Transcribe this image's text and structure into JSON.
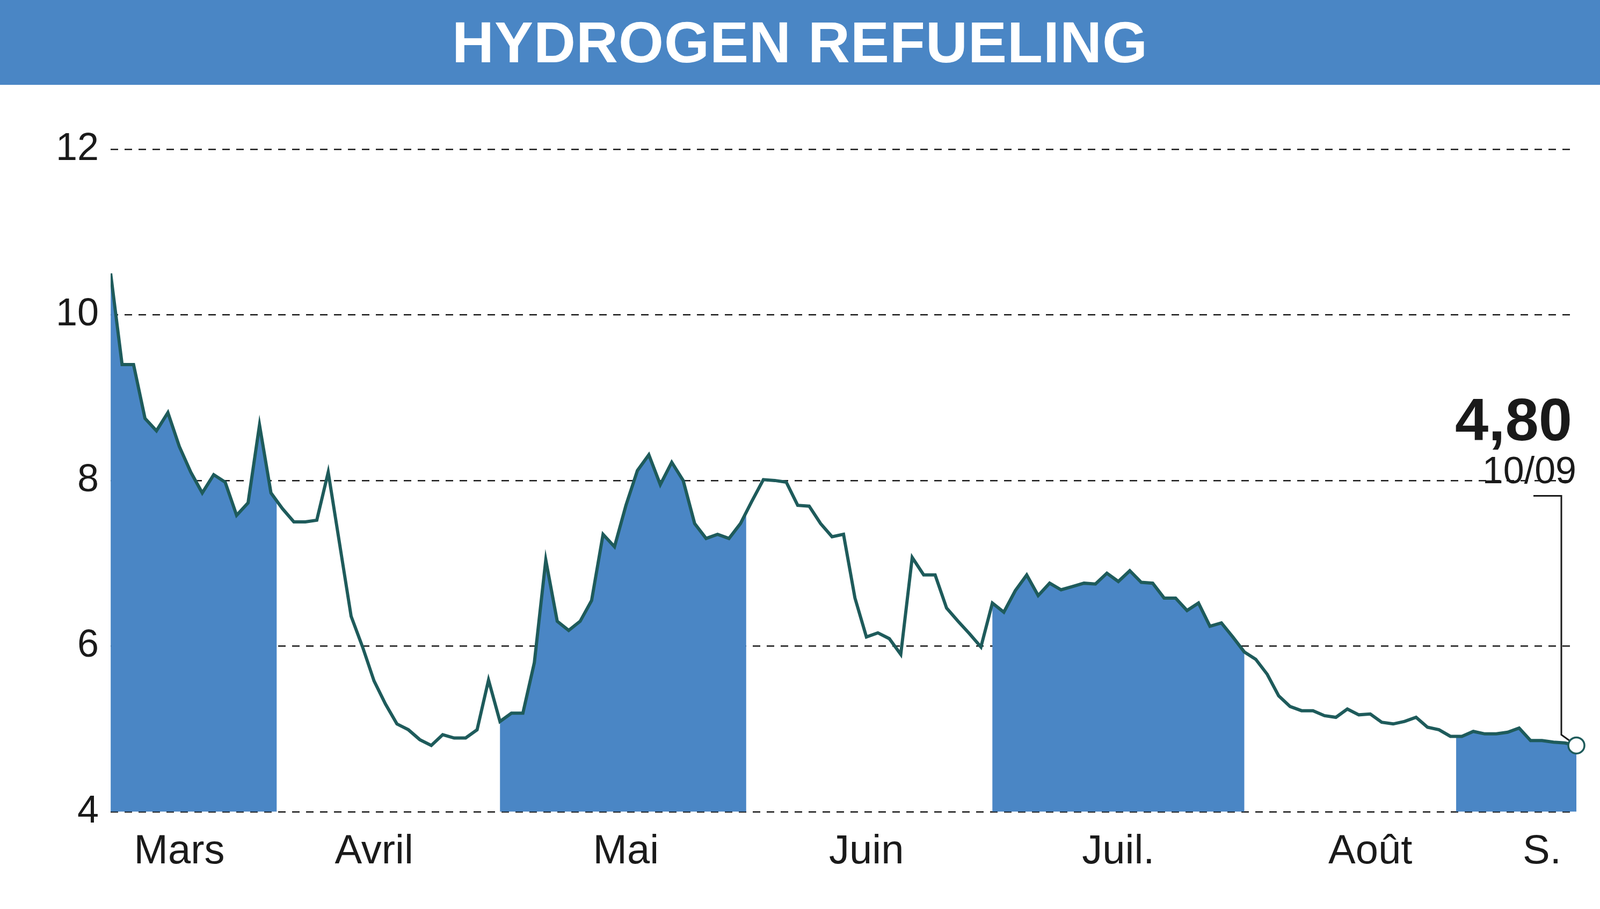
{
  "chart_data": {
    "type": "line",
    "title": "HYDROGEN REFUELING",
    "categories": [
      null,
      null,
      null,
      null,
      null,
      null,
      "Mars",
      null,
      null,
      null,
      null,
      null,
      null,
      null,
      null,
      null,
      null,
      null,
      null,
      null,
      null,
      null,
      null,
      "Avril",
      null,
      null,
      null,
      null,
      null,
      null,
      null,
      null,
      null,
      null,
      null,
      null,
      null,
      null,
      null,
      null,
      null,
      null,
      null,
      null,
      null,
      "Mai",
      null,
      null,
      null,
      null,
      null,
      null,
      null,
      null,
      null,
      null,
      null,
      null,
      null,
      null,
      null,
      null,
      null,
      null,
      null,
      null,
      "Juin",
      null,
      null,
      null,
      null,
      null,
      null,
      null,
      null,
      null,
      null,
      null,
      null,
      null,
      null,
      null,
      null,
      null,
      null,
      null,
      null,
      null,
      "Juil.",
      null,
      null,
      null,
      null,
      null,
      null,
      null,
      null,
      null,
      null,
      null,
      null,
      null,
      null,
      null,
      null,
      null,
      null,
      null,
      null,
      null,
      "Août",
      null,
      null,
      null,
      null,
      null,
      null,
      null,
      null,
      null,
      null,
      null,
      null,
      null,
      null,
      "S.",
      null,
      null,
      null
    ],
    "values": [
      10.5,
      9.4,
      9.4,
      8.75,
      8.6,
      8.82,
      8.41,
      8.1,
      7.85,
      8.07,
      7.98,
      7.58,
      7.73,
      8.67,
      7.85,
      7.66,
      7.5,
      7.5,
      7.52,
      8.1,
      7.23,
      6.36,
      5.99,
      5.58,
      5.3,
      5.06,
      4.99,
      4.87,
      4.8,
      4.93,
      4.89,
      4.89,
      4.99,
      5.59,
      5.09,
      5.19,
      5.19,
      5.8,
      7.04,
      6.3,
      6.19,
      6.3,
      6.55,
      7.35,
      7.2,
      7.7,
      8.12,
      8.31,
      7.95,
      8.22,
      8.0,
      7.48,
      7.3,
      7.35,
      7.3,
      7.48,
      7.75,
      8.01,
      8.0,
      7.98,
      7.7,
      7.69,
      7.48,
      7.32,
      7.35,
      6.58,
      6.11,
      6.16,
      6.09,
      5.9,
      7.07,
      6.86,
      6.86,
      6.46,
      6.3,
      6.15,
      5.99,
      6.52,
      6.41,
      6.67,
      6.86,
      6.61,
      6.76,
      6.68,
      6.72,
      6.76,
      6.75,
      6.88,
      6.78,
      6.91,
      6.77,
      6.76,
      6.58,
      6.58,
      6.43,
      6.52,
      6.24,
      6.28,
      6.11,
      5.93,
      5.84,
      5.66,
      5.4,
      5.27,
      5.22,
      5.22,
      5.16,
      5.14,
      5.24,
      5.17,
      5.18,
      5.08,
      5.06,
      5.09,
      5.14,
      5.02,
      4.99,
      4.91,
      4.91,
      4.97,
      4.94,
      4.94,
      4.96,
      5.01,
      4.86,
      4.86,
      4.84,
      4.83,
      4.8
    ],
    "color": "#1e5b5b",
    "ylim": [
      4,
      12
    ],
    "yticks": [
      4,
      6,
      8,
      10,
      12
    ],
    "grid": true,
    "annotation": {
      "value": 4.8,
      "label": "4,80",
      "date": "10/09"
    }
  }
}
